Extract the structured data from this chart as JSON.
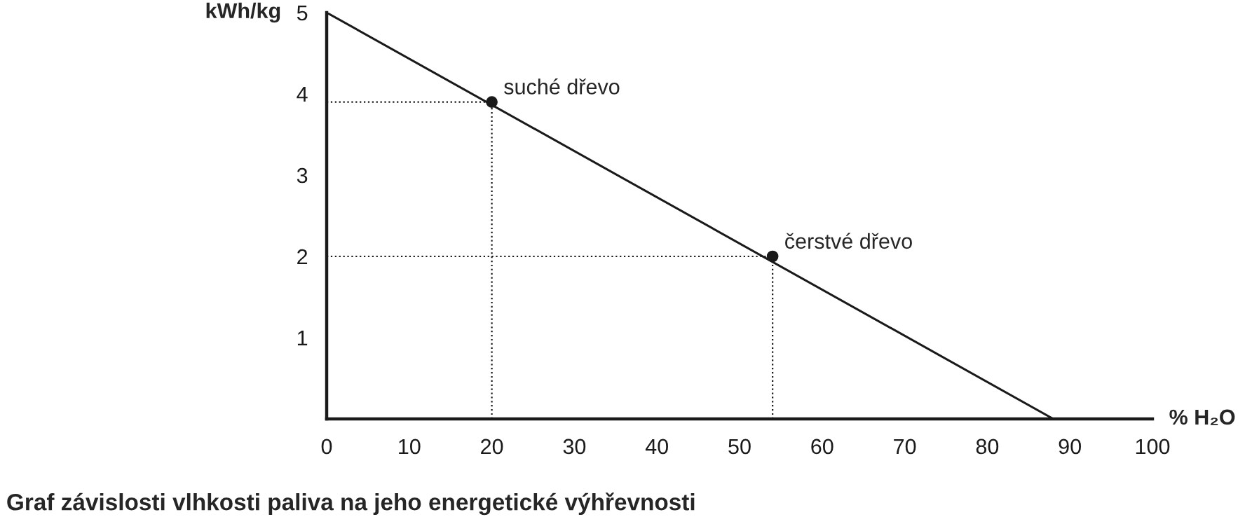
{
  "chart_data": {
    "type": "line",
    "title": "Graf závislosti vlhkosti paliva na jeho energetické výhřevnosti",
    "xlabel": "% H₂O",
    "ylabel": "kWh/kg",
    "series": [
      {
        "color": "#1a1a1a",
        "x": [
          0,
          88
        ],
        "values": [
          5,
          0
        ],
        "marker": "none",
        "line_style": "solid"
      },
      {
        "type": "scatter",
        "color": "#1a1a1a",
        "x": [
          20,
          54
        ],
        "values": [
          3.9,
          2.0
        ],
        "marker": "circle",
        "line_style": "dotted"
      }
    ],
    "annotations": [
      {
        "text": "suché dřevo",
        "x": 20,
        "y": 3.9
      },
      {
        "text": "čerstvé dřevo",
        "x": 54,
        "y": 2.0
      }
    ],
    "xlim": [
      0,
      100
    ],
    "ylim": [
      0,
      5
    ],
    "xticks": [
      0,
      10,
      20,
      30,
      40,
      50,
      60,
      70,
      80,
      90,
      100
    ],
    "yticks": [
      1,
      2,
      3,
      4,
      5
    ],
    "legend": false
  }
}
